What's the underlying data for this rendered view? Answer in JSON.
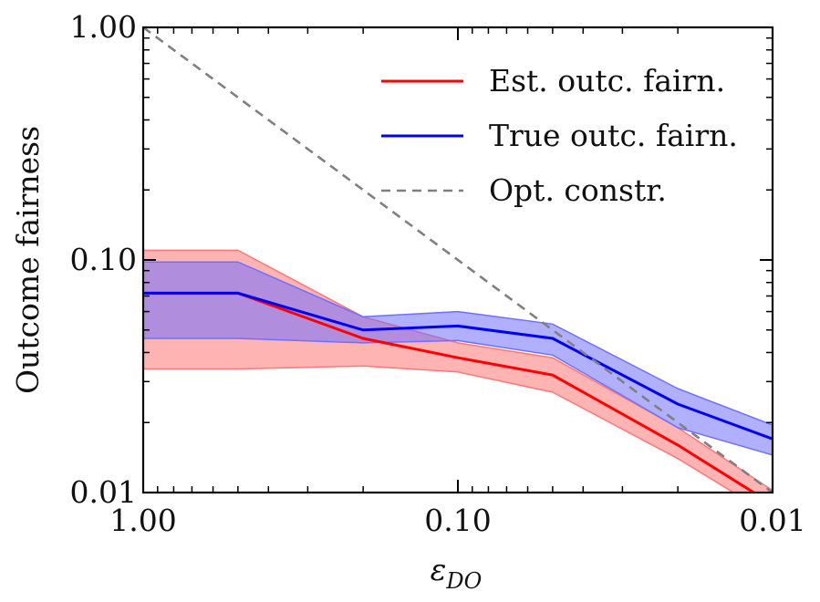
{
  "chart_data": {
    "type": "line",
    "title": "",
    "xlabel": "ε",
    "xlabel_sub": "DO",
    "ylabel": "Outcome fairness",
    "x_scale": "log",
    "y_scale": "log",
    "x_reversed": true,
    "xlim": [
      1.0,
      0.01
    ],
    "ylim": [
      0.01,
      1.0
    ],
    "x_ticks": [
      {
        "value": 1.0,
        "label": "1.00"
      },
      {
        "value": 0.1,
        "label": "0.10"
      },
      {
        "value": 0.01,
        "label": "0.01"
      }
    ],
    "y_ticks": [
      {
        "value": 1.0,
        "label": "1.00"
      },
      {
        "value": 0.1,
        "label": "0.10"
      },
      {
        "value": 0.01,
        "label": "0.01"
      }
    ],
    "grid": false,
    "legend_position": "top-right",
    "series": [
      {
        "name": "Est. outc. fairn.",
        "color": "#ff0000",
        "band_color": "#ff7777",
        "style": "solid",
        "x": [
          1.0,
          0.5,
          0.2,
          0.1,
          0.05,
          0.02,
          0.01
        ],
        "y": [
          0.072,
          0.072,
          0.046,
          0.038,
          0.032,
          0.016,
          0.0089
        ],
        "lower": [
          0.034,
          0.034,
          0.035,
          0.033,
          0.027,
          0.014,
          0.0079
        ],
        "upper": [
          0.11,
          0.11,
          0.057,
          0.044,
          0.038,
          0.019,
          0.0102
        ]
      },
      {
        "name": "True outc. fairn.",
        "color": "#0000ee",
        "band_color": "#6f6fff",
        "style": "solid",
        "x": [
          1.0,
          0.5,
          0.2,
          0.1,
          0.05,
          0.02,
          0.01
        ],
        "y": [
          0.072,
          0.072,
          0.05,
          0.052,
          0.046,
          0.024,
          0.017
        ],
        "lower": [
          0.046,
          0.046,
          0.044,
          0.045,
          0.039,
          0.019,
          0.0145
        ],
        "upper": [
          0.098,
          0.098,
          0.057,
          0.06,
          0.053,
          0.028,
          0.0195
        ]
      },
      {
        "name": "Opt. constr.",
        "color": "#808080",
        "style": "dashed",
        "x": [
          1.0,
          0.01
        ],
        "y": [
          1.0,
          0.01
        ]
      }
    ]
  }
}
